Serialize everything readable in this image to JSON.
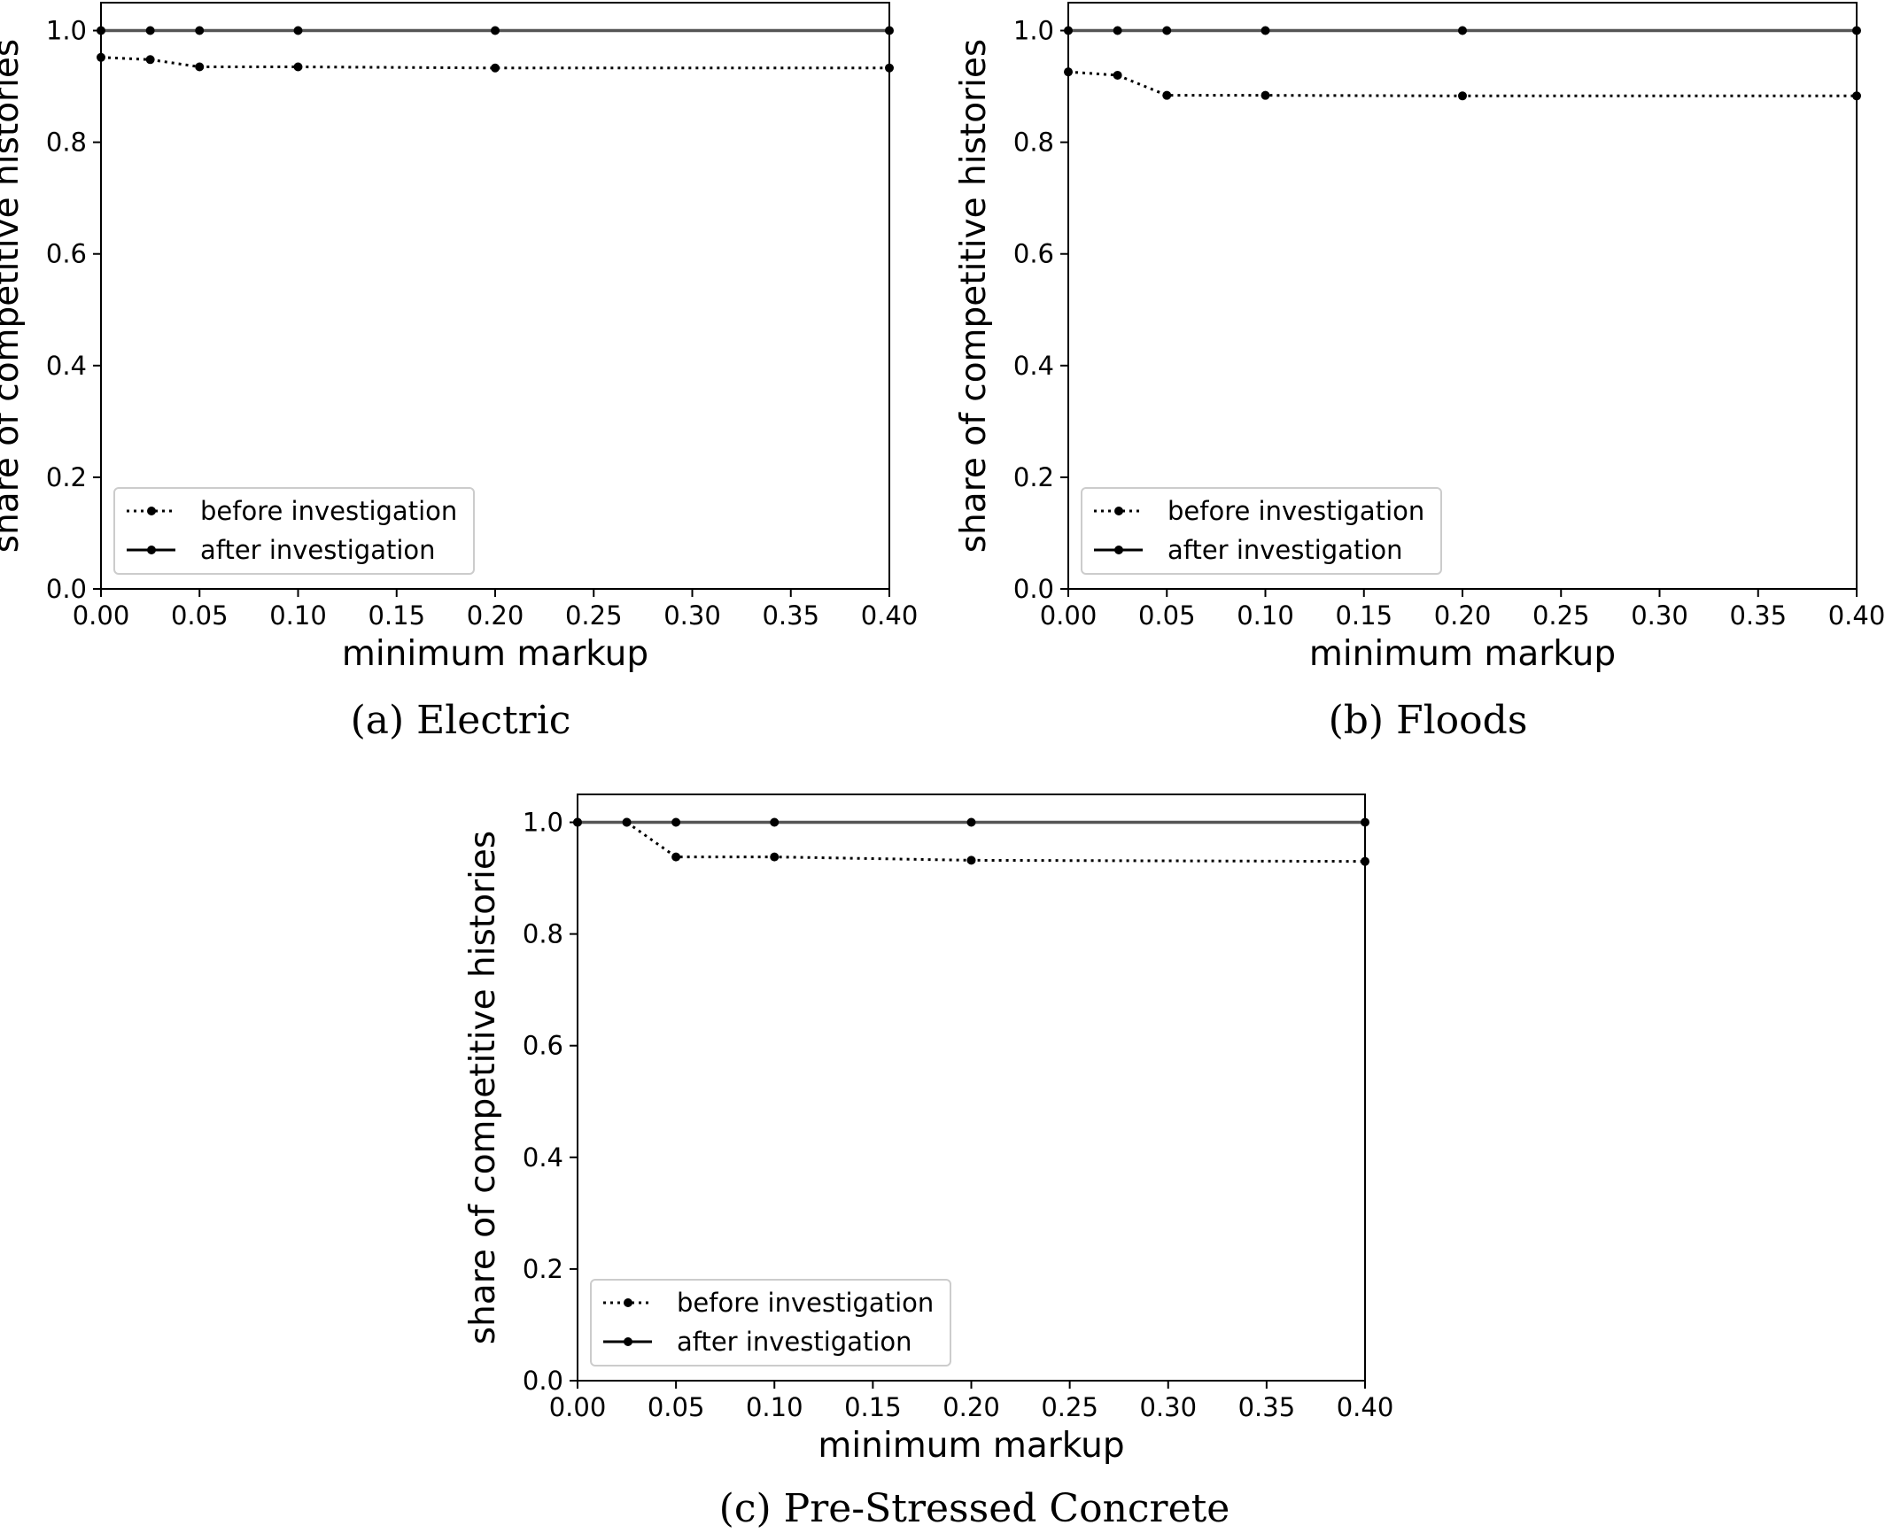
{
  "chart_data": [
    {
      "type": "line",
      "title": "(a) Electric",
      "xlabel": "minimum markup",
      "ylabel": "share of competitive histories",
      "xlim": [
        0.0,
        0.4
      ],
      "ylim": [
        0.0,
        1.05
      ],
      "xticks": [
        "0.00",
        "0.05",
        "0.10",
        "0.15",
        "0.20",
        "0.25",
        "0.30",
        "0.35",
        "0.40"
      ],
      "yticks": [
        "0.0",
        "0.2",
        "0.4",
        "0.6",
        "0.8",
        "1.0"
      ],
      "grid": false,
      "legend_position": "lower left",
      "x": [
        0.0,
        0.025,
        0.05,
        0.1,
        0.2,
        0.4
      ],
      "series": [
        {
          "name": "before investigation",
          "style": "dotted",
          "values": [
            0.952,
            0.948,
            0.935,
            0.935,
            0.933,
            0.933
          ]
        },
        {
          "name": "after investigation",
          "style": "solid",
          "values": [
            1.0,
            1.0,
            1.0,
            1.0,
            1.0,
            1.0
          ]
        }
      ]
    },
    {
      "type": "line",
      "title": "(b) Floods",
      "xlabel": "minimum markup",
      "ylabel": "share of competitive histories",
      "xlim": [
        0.0,
        0.4
      ],
      "ylim": [
        0.0,
        1.05
      ],
      "xticks": [
        "0.00",
        "0.05",
        "0.10",
        "0.15",
        "0.20",
        "0.25",
        "0.30",
        "0.35",
        "0.40"
      ],
      "yticks": [
        "0.0",
        "0.2",
        "0.4",
        "0.6",
        "0.8",
        "1.0"
      ],
      "grid": false,
      "legend_position": "lower left",
      "x": [
        0.0,
        0.025,
        0.05,
        0.1,
        0.2,
        0.4
      ],
      "series": [
        {
          "name": "before investigation",
          "style": "dotted",
          "values": [
            0.926,
            0.92,
            0.884,
            0.884,
            0.883,
            0.883
          ]
        },
        {
          "name": "after investigation",
          "style": "solid",
          "values": [
            1.0,
            1.0,
            1.0,
            1.0,
            1.0,
            1.0
          ]
        }
      ]
    },
    {
      "type": "line",
      "title": "(c) Pre-Stressed Concrete",
      "xlabel": "minimum markup",
      "ylabel": "share of competitive histories",
      "xlim": [
        0.0,
        0.4
      ],
      "ylim": [
        0.0,
        1.05
      ],
      "xticks": [
        "0.00",
        "0.05",
        "0.10",
        "0.15",
        "0.20",
        "0.25",
        "0.30",
        "0.35",
        "0.40"
      ],
      "yticks": [
        "0.0",
        "0.2",
        "0.4",
        "0.6",
        "0.8",
        "1.0"
      ],
      "grid": false,
      "legend_position": "lower left",
      "x": [
        0.0,
        0.025,
        0.05,
        0.1,
        0.2,
        0.4
      ],
      "series": [
        {
          "name": "before investigation",
          "style": "dotted",
          "values": [
            1.0,
            1.0,
            0.938,
            0.938,
            0.932,
            0.93
          ]
        },
        {
          "name": "after investigation",
          "style": "solid",
          "values": [
            1.0,
            1.0,
            1.0,
            1.0,
            1.0,
            1.0
          ]
        }
      ]
    }
  ]
}
